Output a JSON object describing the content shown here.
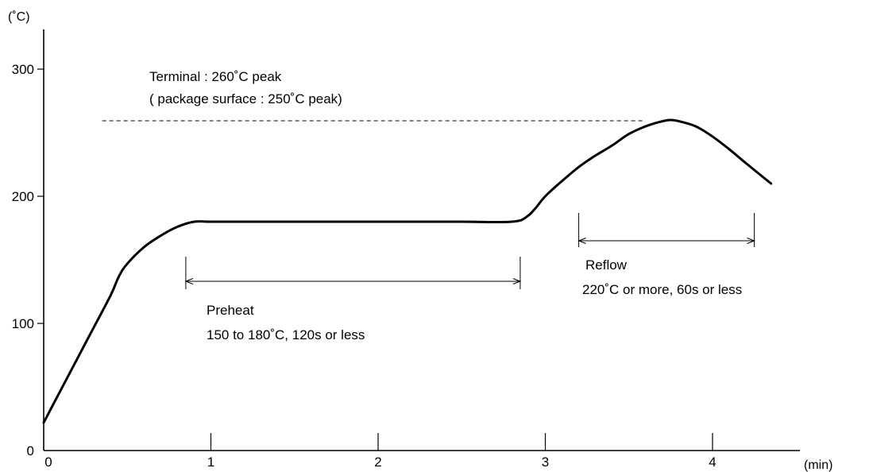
{
  "chart_data": {
    "type": "line",
    "x_unit": "(min)",
    "y_unit": "(˚C)",
    "xlim": [
      0,
      4.4
    ],
    "ylim": [
      0,
      320
    ],
    "x_ticks": [
      "0",
      "1",
      "2",
      "3",
      "4"
    ],
    "y_ticks": [
      "0",
      "100",
      "200",
      "300"
    ],
    "grid": false,
    "series": [
      {
        "x": [
          0,
          0.1,
          0.2,
          0.3,
          0.4,
          0.45,
          0.5,
          0.6,
          0.7,
          0.8,
          0.9,
          1.0,
          1.2,
          1.5,
          2.0,
          2.5,
          2.8,
          2.9,
          3.0,
          3.1,
          3.2,
          3.3,
          3.4,
          3.5,
          3.6,
          3.7,
          3.75,
          3.8,
          3.9,
          4.0,
          4.1,
          4.2,
          4.35
        ],
        "y": [
          22,
          47,
          72,
          97,
          122,
          137,
          147,
          160,
          169,
          176,
          180,
          180,
          180,
          180,
          180,
          180,
          180,
          185,
          200,
          212,
          223,
          232,
          240,
          249,
          255,
          259,
          260,
          259,
          255,
          247,
          237,
          226,
          210
        ]
      }
    ],
    "annotations": {
      "peak_line1": "Terminal : 260˚C peak",
      "peak_line2": "( package surface : 250˚C peak)",
      "peak_level": 260,
      "peak_span": [
        0.35,
        3.6
      ],
      "preheat_title": "Preheat",
      "preheat_detail": "150 to 180˚C, 120s or less",
      "preheat_span": [
        0.85,
        2.85
      ],
      "reflow_title": "Reflow",
      "reflow_detail": "220˚C or more, 60s or less",
      "reflow_span": [
        3.2,
        4.25
      ]
    }
  }
}
